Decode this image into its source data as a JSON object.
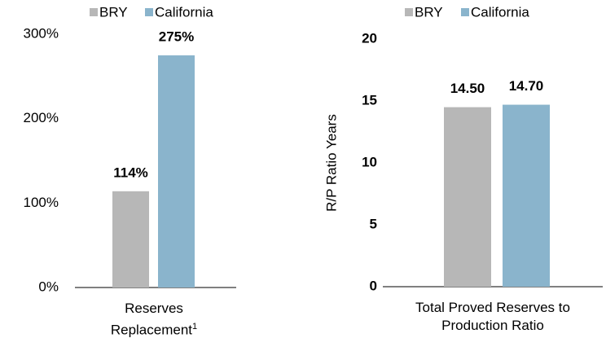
{
  "chart_data": [
    {
      "type": "bar",
      "categories": [
        "Reserves Replacement"
      ],
      "category_footnote": "1",
      "series": [
        {
          "name": "BRY",
          "color": "#b7b7b7",
          "values": [
            114
          ],
          "value_labels": [
            "114%"
          ]
        },
        {
          "name": "California",
          "color": "#8ab4cc",
          "values": [
            275
          ],
          "value_labels": [
            "275%"
          ]
        }
      ],
      "ylim": [
        0,
        300
      ],
      "yticks": [
        {
          "value": 0,
          "label": "0%"
        },
        {
          "value": 100,
          "label": "100%"
        },
        {
          "value": 200,
          "label": "200%"
        },
        {
          "value": 300,
          "label": "300%"
        }
      ]
    },
    {
      "type": "bar",
      "categories": [
        "Total Proved Reserves to Production Ratio"
      ],
      "y_label": "R/P Ratio Years",
      "series": [
        {
          "name": "BRY",
          "color": "#b7b7b7",
          "values": [
            14.5
          ],
          "value_labels": [
            "14.50"
          ]
        },
        {
          "name": "California",
          "color": "#8ab4cc",
          "values": [
            14.7
          ],
          "value_labels": [
            "14.70"
          ]
        }
      ],
      "ylim": [
        0,
        20
      ],
      "yticks": [
        0,
        5,
        10,
        15,
        20
      ]
    }
  ]
}
